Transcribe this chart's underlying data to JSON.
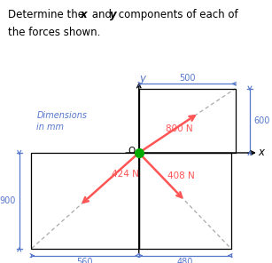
{
  "title_line1_normal1": "Determine the ",
  "title_italic_x": "x",
  "title_normal2": " and ",
  "title_italic_y": "y",
  "title_normal3": " components of each of",
  "title_line2": "the forces shown.",
  "dim_label_line1": "Dimensions",
  "dim_label_line2": "in mm",
  "force_800_label": "800 N",
  "force_424_label": "424 N",
  "force_408_label": "408 N",
  "arrow_color": "#FF5555",
  "dashed_color": "#AAAAAA",
  "dim_color": "#5577CC",
  "label_color": "#FF5555",
  "origin_dot_color": "#00AA00",
  "dim_500": "500",
  "dim_600": "600",
  "dim_900": "900",
  "dim_560": "560",
  "dim_480": "480",
  "title_fontsize": 8.5,
  "label_fontsize": 7.5,
  "dim_fontsize": 7.0,
  "axis_label_fontsize": 8.5
}
